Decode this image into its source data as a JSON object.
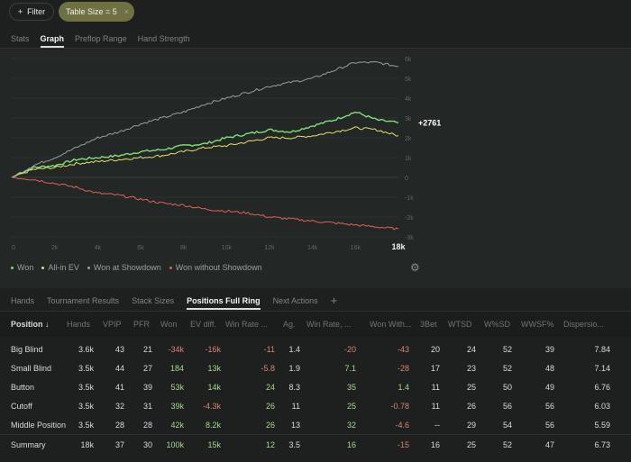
{
  "toolbar": {
    "filter_label": "Filter",
    "filter_icon": "plus-icon",
    "chip_label": "Table Size = 5",
    "chip_close": "×"
  },
  "view_tabs": [
    {
      "label": "Stats"
    },
    {
      "label": "Graph",
      "active": true
    },
    {
      "label": "Preflop Range"
    },
    {
      "label": "Hand Strength"
    }
  ],
  "chart_data": {
    "type": "line",
    "x": [
      0,
      1000,
      2000,
      3000,
      4000,
      5000,
      6000,
      7000,
      8000,
      9000,
      10000,
      11000,
      12000,
      13000,
      14000,
      15000,
      16000,
      17000,
      18000
    ],
    "series": [
      {
        "name": "Won",
        "color": "#7ee07a",
        "values": [
          0,
          500,
          600,
          900,
          1000,
          1100,
          1300,
          1400,
          1600,
          1700,
          2000,
          2200,
          2400,
          2300,
          2600,
          2900,
          3300,
          2900,
          2761
        ]
      },
      {
        "name": "All-in EV",
        "color": "#e6e06a",
        "values": [
          0,
          400,
          500,
          700,
          800,
          900,
          1000,
          1100,
          1300,
          1500,
          1600,
          1800,
          2000,
          2000,
          2100,
          2300,
          2500,
          2400,
          2100
        ]
      },
      {
        "name": "Won at Showdown",
        "color": "#9a9e9b",
        "values": [
          0,
          600,
          1000,
          1500,
          2000,
          2300,
          2700,
          3000,
          3300,
          3700,
          4000,
          4300,
          4600,
          4800,
          5000,
          5400,
          5800,
          5800,
          5600
        ]
      },
      {
        "name": "Won without Showdown",
        "color": "#e0605a",
        "values": [
          0,
          -100,
          -300,
          -500,
          -800,
          -900,
          -1100,
          -1300,
          -1400,
          -1600,
          -1700,
          -1800,
          -2000,
          -2100,
          -2200,
          -2300,
          -2400,
          -2500,
          -2600
        ]
      }
    ],
    "xticks": [
      "0",
      "2k",
      "4k",
      "6k",
      "8k",
      "10k",
      "12k",
      "14k",
      "16k",
      "18k"
    ],
    "yticks": [
      "6k",
      "5k",
      "4k",
      "3k",
      "2k",
      "1k",
      "0",
      "-1k",
      "-2k",
      "-3k"
    ],
    "ylim": [
      -3000,
      6000
    ],
    "xlim": [
      0,
      18000
    ],
    "end_label": "+2761",
    "legend_position": "bottom-left"
  },
  "bottom_tabs": [
    {
      "label": "Hands"
    },
    {
      "label": "Tournament Results"
    },
    {
      "label": "Stack Sizes"
    },
    {
      "label": "Positions Full Ring",
      "active": true
    },
    {
      "label": "Next Actions"
    }
  ],
  "add_tab": "+",
  "table": {
    "headers": [
      "Position ↓",
      "Hands",
      "VPIP",
      "PFR",
      "Won",
      "EV diff.",
      "Win Rate ...",
      "Ag.",
      "Win Rate, ...",
      "Won With...",
      "3Bet",
      "WTSD",
      "W%SD",
      "WWSF%",
      "Dispersio..."
    ],
    "rows": [
      [
        "Big Blind",
        "3.6k",
        "43",
        "21",
        "-34k",
        "-16k",
        "-11",
        "1.4",
        "-20",
        "-43",
        "20",
        "24",
        "52",
        "39",
        "7.84"
      ],
      [
        "Small Blind",
        "3.5k",
        "44",
        "27",
        "184",
        "13k",
        "-5.8",
        "1.9",
        "7.1",
        "-28",
        "17",
        "23",
        "52",
        "48",
        "7.14"
      ],
      [
        "Button",
        "3.5k",
        "41",
        "39",
        "53k",
        "14k",
        "24",
        "8.3",
        "35",
        "1.4",
        "11",
        "25",
        "50",
        "49",
        "6.76"
      ],
      [
        "Cutoff",
        "3.5k",
        "32",
        "31",
        "39k",
        "-4.3k",
        "26",
        "11",
        "25",
        "-0.78",
        "11",
        "26",
        "56",
        "56",
        "6.03"
      ],
      [
        "Middle Position",
        "3.5k",
        "28",
        "28",
        "42k",
        "8.2k",
        "26",
        "13",
        "32",
        "-4.6",
        "--",
        "29",
        "54",
        "56",
        "5.59"
      ]
    ],
    "summary": [
      "Summary",
      "18k",
      "37",
      "30",
      "100k",
      "15k",
      "12",
      "3.5",
      "16",
      "-15",
      "16",
      "25",
      "52",
      "47",
      "6.73"
    ]
  }
}
